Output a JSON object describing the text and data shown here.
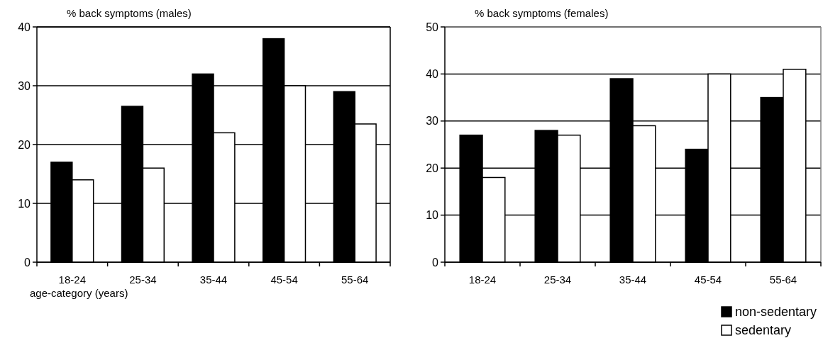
{
  "chart_data": [
    {
      "type": "bar",
      "ylabel": "% back symptoms (males)",
      "xlabel": "age-category (years)",
      "categories": [
        "18-24",
        "25-34",
        "35-44",
        "45-54",
        "55-64"
      ],
      "series": [
        {
          "color": "#000000",
          "values": [
            17,
            26.5,
            32,
            38,
            29
          ]
        },
        {
          "color": "#ffffff",
          "values": [
            14,
            16,
            22,
            30,
            23.5
          ]
        }
      ],
      "ylim": [
        0,
        40
      ],
      "yticks": [
        0,
        10,
        20,
        30,
        40
      ],
      "grid": "y",
      "legend": false
    },
    {
      "type": "bar",
      "ylabel": "% back symptoms (females)",
      "categories": [
        "18-24",
        "25-34",
        "35-44",
        "45-54",
        "55-64"
      ],
      "series": [
        {
          "name": "non-sedentary",
          "color": "#000000",
          "values": [
            27,
            28,
            39,
            24,
            35
          ]
        },
        {
          "name": "sedentary",
          "color": "#ffffff",
          "values": [
            18,
            27,
            29,
            40,
            41
          ]
        }
      ],
      "ylim": [
        0,
        50
      ],
      "yticks": [
        0,
        10,
        20,
        30,
        40,
        50
      ],
      "grid": "y",
      "legend": "bottom right"
    }
  ]
}
